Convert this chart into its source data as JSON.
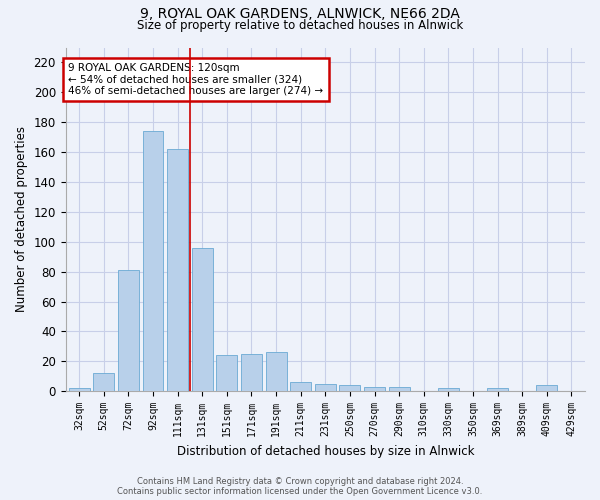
{
  "title_line1": "9, ROYAL OAK GARDENS, ALNWICK, NE66 2DA",
  "title_line2": "Size of property relative to detached houses in Alnwick",
  "xlabel": "Distribution of detached houses by size in Alnwick",
  "ylabel": "Number of detached properties",
  "bar_color": "#b8d0ea",
  "bar_edge_color": "#6aaad4",
  "bins": [
    "32sqm",
    "52sqm",
    "72sqm",
    "92sqm",
    "111sqm",
    "131sqm",
    "151sqm",
    "171sqm",
    "191sqm",
    "211sqm",
    "231sqm",
    "250sqm",
    "270sqm",
    "290sqm",
    "310sqm",
    "330sqm",
    "350sqm",
    "369sqm",
    "389sqm",
    "409sqm",
    "429sqm"
  ],
  "values": [
    2,
    12,
    81,
    174,
    162,
    96,
    24,
    25,
    26,
    6,
    5,
    4,
    3,
    3,
    0,
    2,
    0,
    2,
    0,
    4,
    0
  ],
  "ylim": [
    0,
    230
  ],
  "yticks": [
    0,
    20,
    40,
    60,
    80,
    100,
    120,
    140,
    160,
    180,
    200,
    220
  ],
  "property_label": "9 ROYAL OAK GARDENS: 120sqm",
  "annotation_line1": "← 54% of detached houses are smaller (324)",
  "annotation_line2": "46% of semi-detached houses are larger (274) →",
  "footer_line1": "Contains HM Land Registry data © Crown copyright and database right 2024.",
  "footer_line2": "Contains public sector information licensed under the Open Government Licence v3.0.",
  "bg_color": "#eef2fa",
  "grid_color": "#c8cfe8",
  "red_line_color": "#cc0000",
  "annotation_box_color": "white",
  "annotation_box_edge_color": "#cc0000"
}
